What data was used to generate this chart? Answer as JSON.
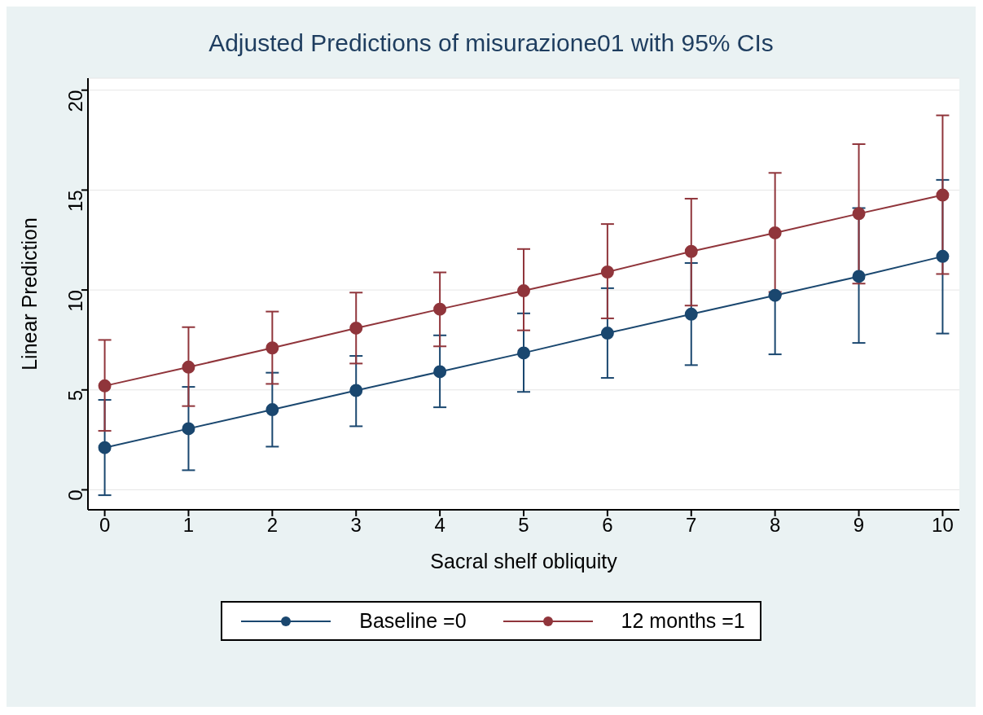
{
  "chart_data": {
    "type": "line",
    "title": "Adjusted Predictions of misurazione01 with 95% CIs",
    "xlabel": "Sacral shelf obliquity",
    "ylabel": "Linear Prediction",
    "x": [
      0,
      1,
      2,
      3,
      4,
      5,
      6,
      7,
      8,
      9,
      10
    ],
    "series": [
      {
        "name": "Baseline =0",
        "color": "#1a476f",
        "values": [
          2.11,
          3.06,
          4.01,
          4.97,
          5.91,
          6.85,
          7.84,
          8.79,
          9.73,
          10.68,
          11.68
        ],
        "errors": [
          [
            -0.27,
            4.5
          ],
          [
            0.98,
            5.15
          ],
          [
            2.16,
            5.86
          ],
          [
            3.18,
            6.7
          ],
          [
            4.13,
            7.73
          ],
          [
            4.9,
            8.83
          ],
          [
            5.6,
            10.09
          ],
          [
            6.24,
            11.35
          ],
          [
            6.78,
            9.73
          ],
          [
            7.35,
            14.1
          ],
          [
            7.82,
            15.51
          ]
        ]
      },
      {
        "name": "12 months =1",
        "color": "#90353b",
        "values": [
          5.2,
          6.14,
          7.1,
          8.09,
          9.04,
          9.96,
          10.9,
          11.93,
          12.86,
          13.82,
          14.75
        ],
        "errors": [
          [
            2.95,
            7.5
          ],
          [
            4.19,
            8.14
          ],
          [
            5.3,
            8.92
          ],
          [
            6.32,
            9.87
          ],
          [
            7.18,
            10.88
          ],
          [
            7.98,
            12.05
          ],
          [
            8.58,
            13.3
          ],
          [
            9.22,
            14.57
          ],
          [
            9.9,
            15.86
          ],
          [
            10.32,
            17.3
          ],
          [
            10.8,
            18.74
          ]
        ]
      }
    ],
    "xlim": [
      -0.2,
      10.2
    ],
    "xticks": [
      0,
      1,
      2,
      3,
      4,
      5,
      6,
      7,
      8,
      9,
      10
    ],
    "ylim": [
      -1,
      20.6
    ],
    "yticks": [
      0,
      5,
      10,
      15,
      20
    ],
    "grid": "y",
    "legend": "bottom",
    "marker": "circle",
    "line_style": "solid"
  }
}
